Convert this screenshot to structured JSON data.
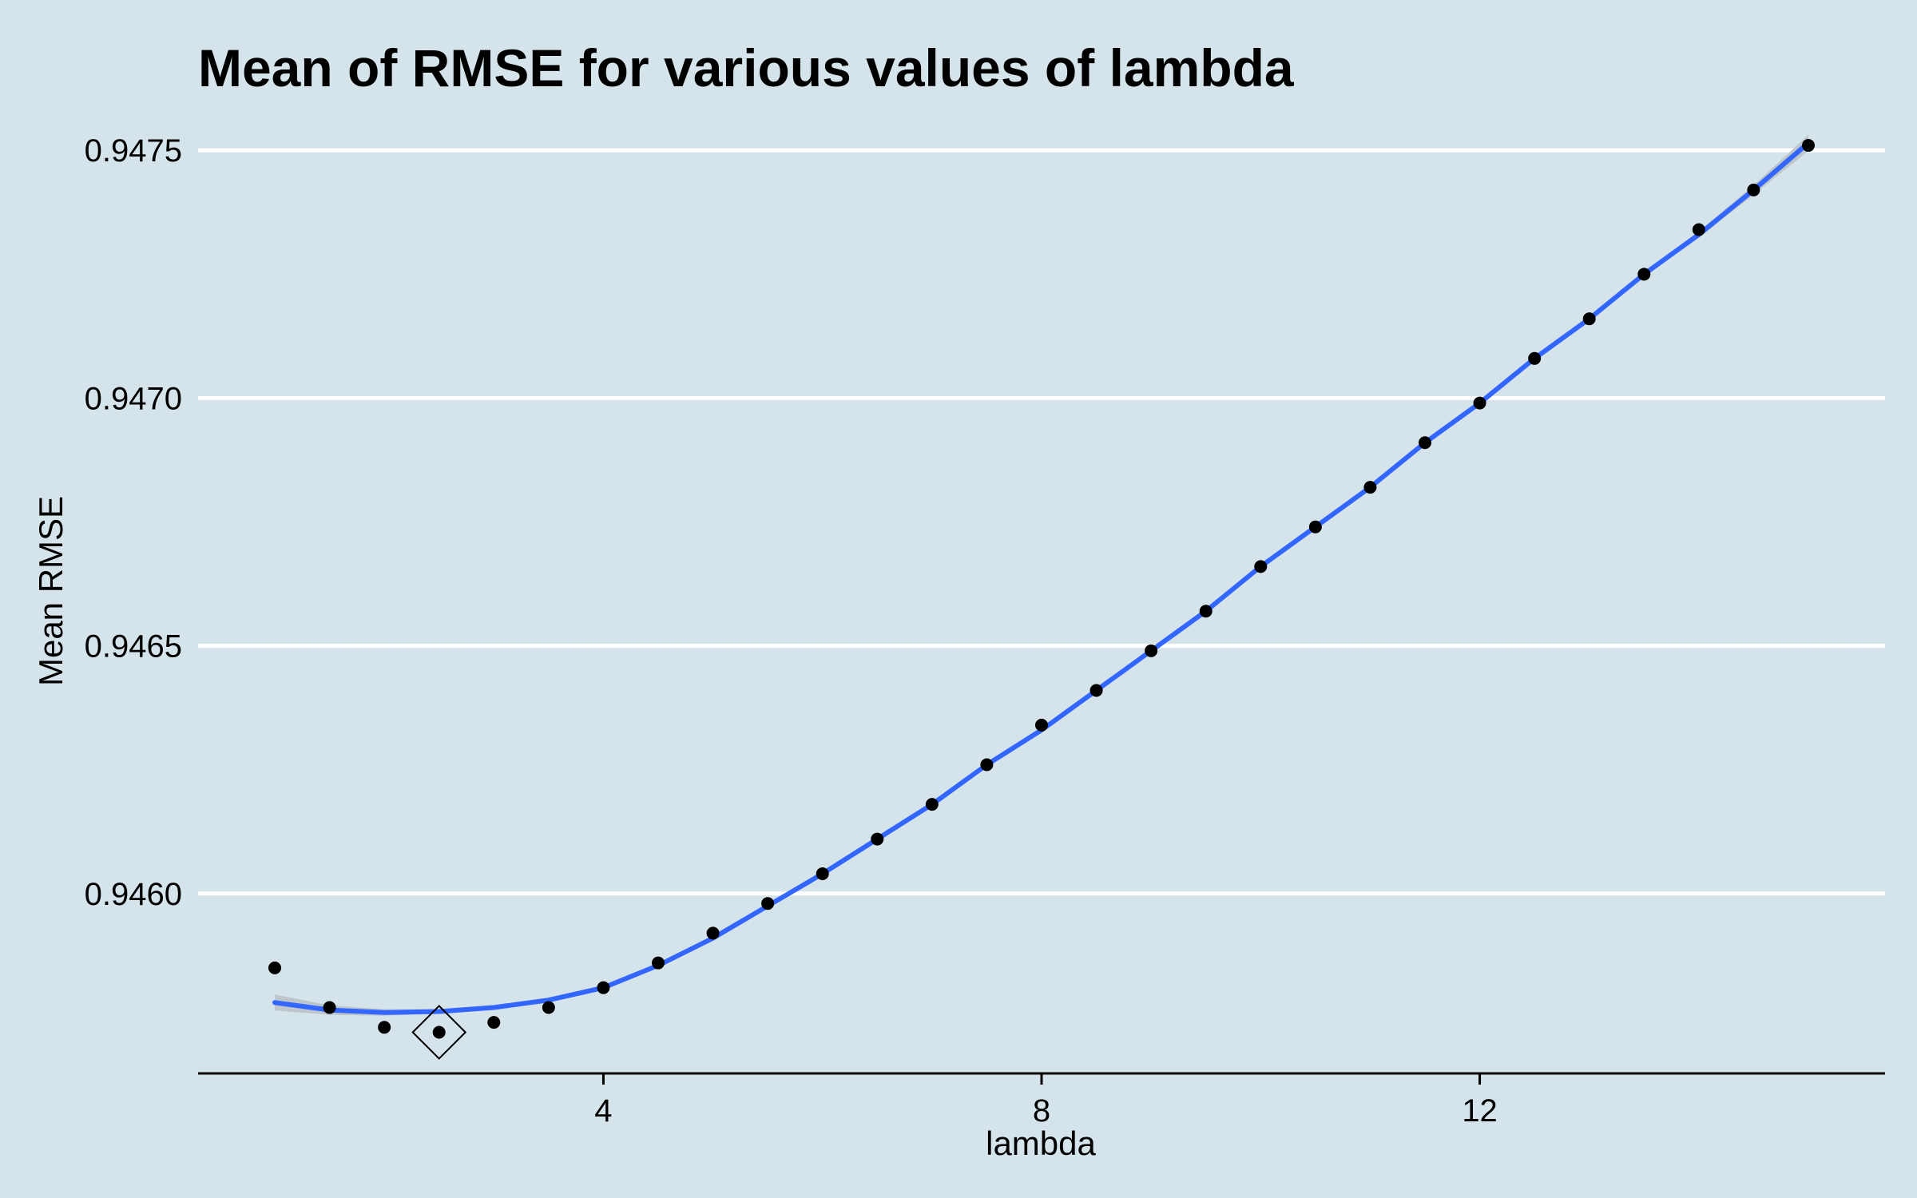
{
  "chart_data": {
    "type": "scatter",
    "title": "Mean of RMSE for various values of lambda",
    "xlabel": "lambda",
    "ylabel": "Mean RMSE",
    "xlim": [
      0.3,
      15.7
    ],
    "ylim": [
      0.945637,
      0.94761
    ],
    "x_ticks": [
      4,
      8,
      12
    ],
    "x_tick_labels": [
      "4",
      "8",
      "12"
    ],
    "y_ticks": [
      0.946,
      0.9465,
      0.947,
      0.9475
    ],
    "y_tick_labels": [
      "0.9460",
      "0.9465",
      "0.9470",
      "0.9475"
    ],
    "grid": "horizontal major, white",
    "series": [
      {
        "type": "points",
        "x": [
          1,
          1.5,
          2,
          2.5,
          3,
          3.5,
          4,
          4.5,
          5,
          5.5,
          6,
          6.5,
          7,
          7.5,
          8,
          8.5,
          9,
          9.5,
          10,
          10.5,
          11,
          11.5,
          12,
          12.5,
          13,
          13.5,
          14,
          14.5,
          15
        ],
        "y": [
          0.94585,
          0.94577,
          0.94573,
          0.94572,
          0.94574,
          0.94577,
          0.94581,
          0.94586,
          0.94592,
          0.94598,
          0.94604,
          0.94611,
          0.94618,
          0.94626,
          0.94634,
          0.94641,
          0.94649,
          0.94657,
          0.94666,
          0.94674,
          0.94682,
          0.94691,
          0.94699,
          0.94708,
          0.94716,
          0.94725,
          0.94734,
          0.94742,
          0.94751
        ],
        "color": "#000000"
      },
      {
        "type": "smooth",
        "x": [
          1,
          1.5,
          2,
          2.5,
          3,
          3.5,
          4,
          4.5,
          5,
          5.5,
          6,
          6.5,
          7,
          7.5,
          8,
          8.5,
          9,
          9.5,
          10,
          10.5,
          11,
          11.5,
          12,
          12.5,
          13,
          13.5,
          14,
          14.5,
          15
        ],
        "y": [
          0.94578,
          0.945765,
          0.94576,
          0.945762,
          0.94577,
          0.945785,
          0.94581,
          0.945855,
          0.94591,
          0.945975,
          0.94604,
          0.94611,
          0.94618,
          0.94626,
          0.94633,
          0.94641,
          0.94649,
          0.94657,
          0.94666,
          0.94674,
          0.94682,
          0.94691,
          0.94699,
          0.94708,
          0.94716,
          0.94725,
          0.94733,
          0.94742,
          0.947515
        ],
        "color": "#3366ff",
        "band_color": "#b9c2c8"
      }
    ],
    "highlight": {
      "x": 2.5,
      "y": 0.94572,
      "shape": "diamond"
    }
  }
}
